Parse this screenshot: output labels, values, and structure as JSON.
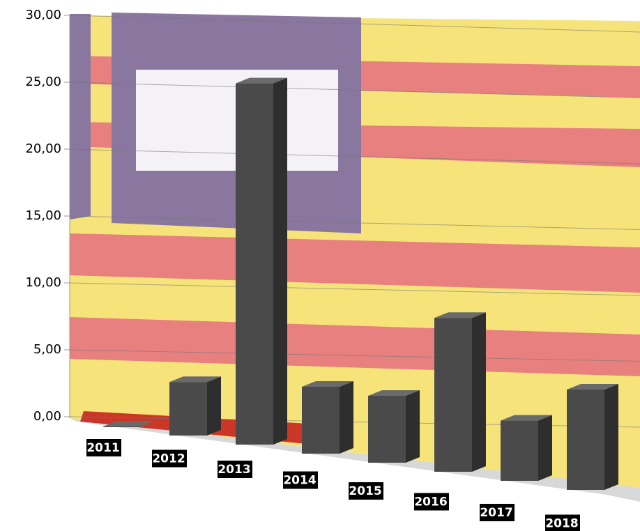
{
  "chart_data": {
    "type": "bar3d",
    "categories": [
      "2011",
      "2012",
      "2013",
      "2014",
      "2015",
      "2016",
      "2017",
      "2018"
    ],
    "values": [
      0,
      4,
      27,
      5,
      5,
      11.5,
      4.5,
      7.5
    ],
    "color": "#4a4a4a",
    "ylim": [
      0,
      30
    ],
    "yticks": [
      {
        "value": 0,
        "label": "0,00"
      },
      {
        "value": 5,
        "label": "5,00"
      },
      {
        "value": 10,
        "label": "10,00"
      },
      {
        "value": 15,
        "label": "15,00"
      },
      {
        "value": 20,
        "label": "20,00"
      },
      {
        "value": 25,
        "label": "25,00"
      },
      {
        "value": 30,
        "label": "30,00"
      }
    ],
    "grid": true
  }
}
